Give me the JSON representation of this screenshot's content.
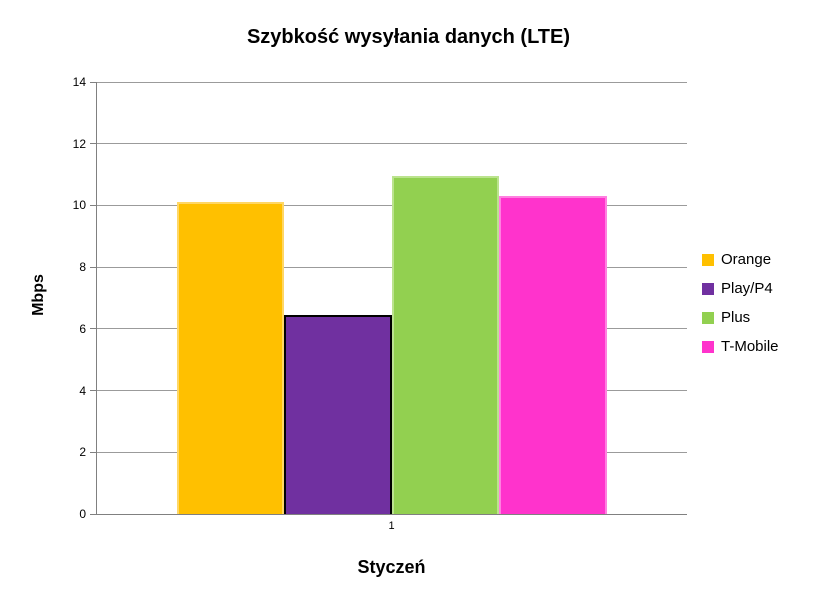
{
  "chart_data": {
    "type": "bar",
    "title": "Szybkość wysyłania danych (LTE)",
    "categories": [
      "1"
    ],
    "series": [
      {
        "name": "Orange",
        "values": [
          10.1
        ],
        "color": "#FFC000",
        "border_color": "#FFD765"
      },
      {
        "name": "Play/P4",
        "values": [
          6.45
        ],
        "color": "#7030A0",
        "border_color": "#9А5ЕС2"
      },
      {
        "name": "Plus",
        "values": [
          10.95
        ],
        "color": "#92D050",
        "border_color": "#BBE38E"
      },
      {
        "name": "T-Mobile",
        "values": [
          10.3
        ],
        "color": "#FF33CC",
        "border_color": "#FF80E0"
      }
    ],
    "xlabel": "Styczeń",
    "ylabel": "Mbps",
    "ylim": [
      0,
      14
    ],
    "yticks": [
      0,
      2,
      4,
      6,
      8,
      10,
      12,
      14
    ],
    "grid": true,
    "legend_position": "right",
    "colors": {
      "background": "#FFFFFF",
      "gridline": "#9B9B9B",
      "axis": "#808080",
      "text": "#000000"
    }
  }
}
